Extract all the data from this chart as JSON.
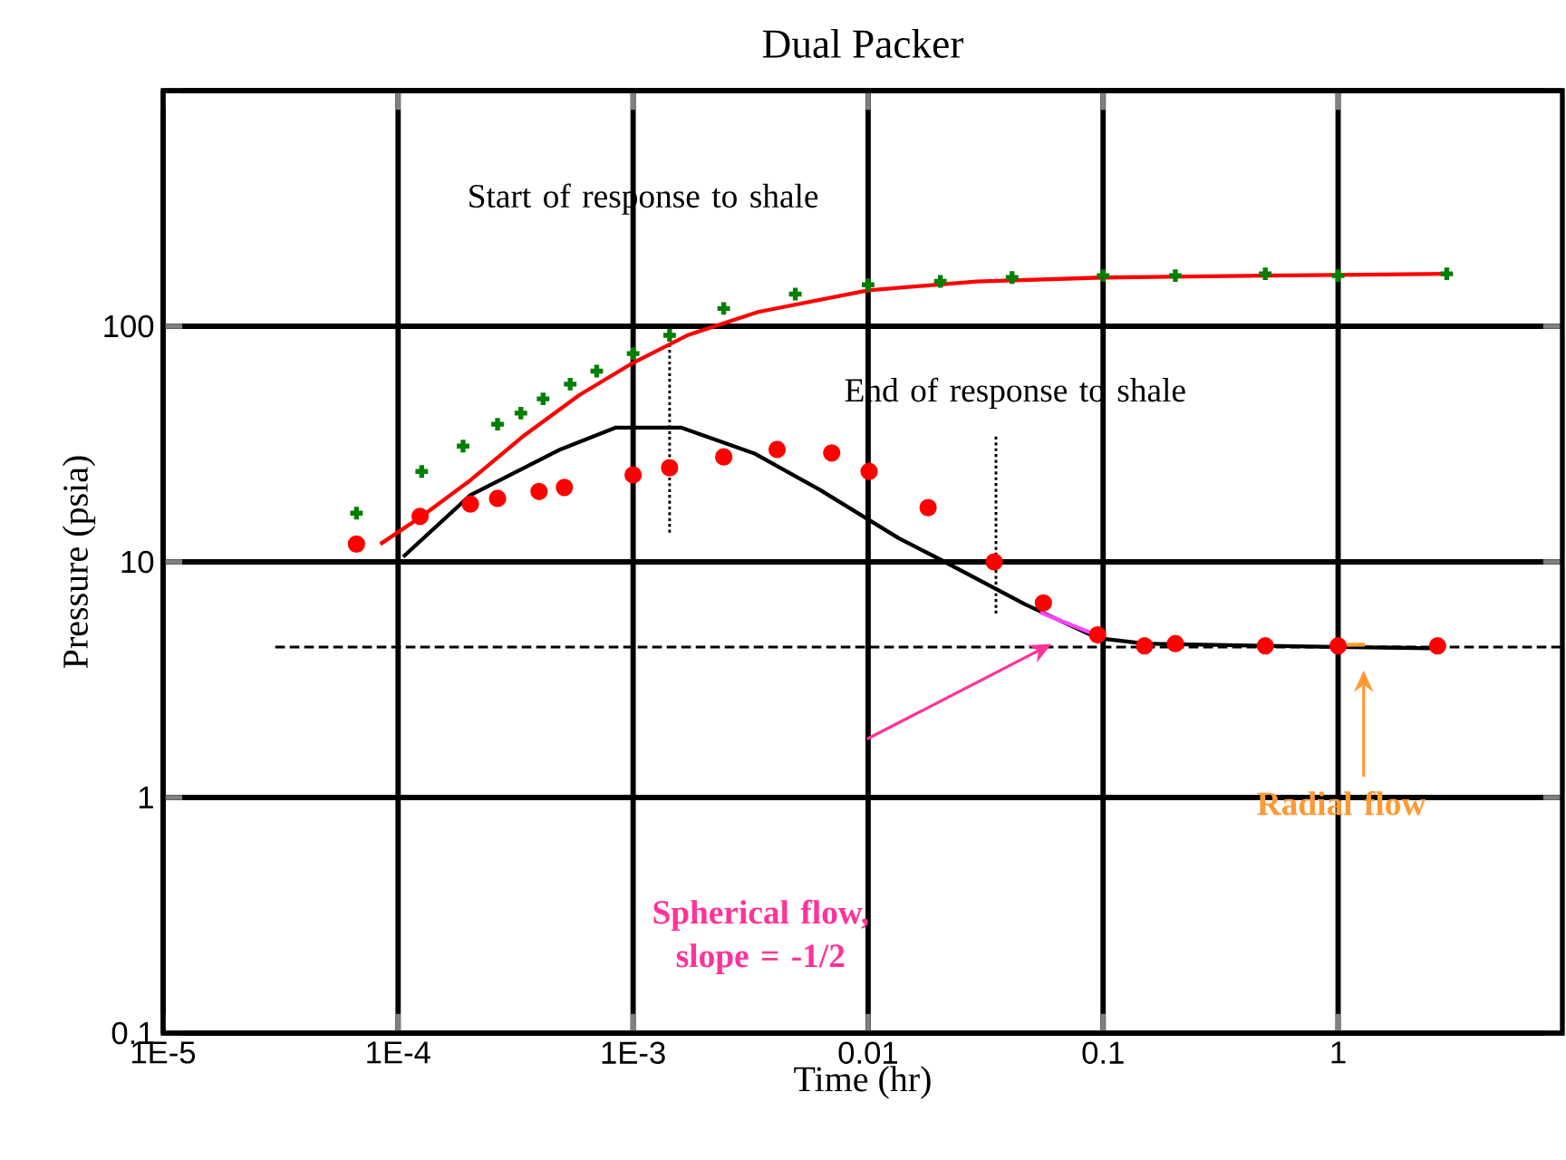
{
  "chart_data": {
    "type": "line",
    "title": "Dual Packer",
    "xlabel": "Time (hr)",
    "ylabel": "Pressure (psia)",
    "log": "xy",
    "grid": true,
    "xlim": [
      1e-05,
      9
    ],
    "ylim": [
      0.1,
      1000
    ],
    "xticks": [
      {
        "value": 1e-05,
        "label": "1E-5"
      },
      {
        "value": 0.0001,
        "label": "1E-4"
      },
      {
        "value": 0.001,
        "label": "1E-3"
      },
      0.01,
      0.1,
      1
    ],
    "yticks": [
      0.1,
      1,
      10,
      100,
      {
        "value": 1000,
        "label": null
      }
    ],
    "annotations": [
      "Start of response to shale",
      "End of response to shale",
      "Spherical flow, slope = -1/2",
      "Radial flow"
    ],
    "series": [
      {
        "color": "#000000",
        "line_style": "dashed",
        "x": [
          3e-05,
          9
        ],
        "values": [
          4.35,
          4.35
        ]
      },
      {
        "color": "#000000",
        "line_style": "dotted",
        "x": [
          0.00143,
          0.00143
        ],
        "values": [
          84,
          13
        ]
      },
      {
        "color": "#000000",
        "line_style": "dotted",
        "x": [
          0.035,
          0.035
        ],
        "values": [
          34,
          5.9
        ]
      },
      {
        "type": "scatter",
        "marker": "cross",
        "color": "#007f00",
        "x": [
          6.65e-05,
          0.000126,
          0.000189,
          0.000265,
          0.000333,
          0.000414,
          0.00054,
          0.0007,
          0.001,
          0.00143,
          0.00243,
          0.0049,
          0.01,
          0.0203,
          0.041,
          0.1,
          0.203,
          0.49,
          1,
          2.9
        ],
        "values": [
          16.1,
          24.2,
          31,
          38.4,
          42.8,
          49.2,
          56.8,
          64.5,
          76.6,
          91.5,
          119,
          137,
          150,
          155,
          161,
          164,
          164,
          167,
          164,
          167
        ]
      },
      {
        "color": "#ff0000",
        "line_style": "solid",
        "x": [
          8.4e-05,
          0.000126,
          0.000203,
          0.000345,
          0.00059,
          0.001,
          0.0017,
          0.0034,
          0.01,
          0.029,
          0.1,
          0.49,
          2.9
        ],
        "values": [
          11.9,
          15.6,
          22.2,
          34.5,
          51,
          70,
          91.5,
          115,
          142,
          155,
          161,
          164,
          167
        ]
      },
      {
        "type": "scatter",
        "marker": "circle",
        "color": "#ff0000",
        "x": [
          6.65e-05,
          0.000124,
          0.000203,
          0.000265,
          0.000398,
          0.00051,
          0.001,
          0.00143,
          0.00243,
          0.0041,
          0.007,
          0.0101,
          0.018,
          0.0344,
          0.0557,
          0.0947,
          0.15,
          0.203,
          0.49,
          1,
          2.65
        ],
        "values": [
          11.9,
          15.6,
          17.6,
          18.6,
          19.9,
          20.7,
          23.4,
          25.1,
          27.9,
          30,
          29,
          24.2,
          17,
          10,
          6.7,
          4.9,
          4.4,
          4.5,
          4.4,
          4.4,
          4.4
        ]
      },
      {
        "color": "#000000",
        "line_style": "solid",
        "x": [
          0.000105,
          0.000203,
          0.00049,
          0.00084,
          0.00161,
          0.00327,
          0.0062,
          0.0135,
          0.0193,
          0.0466,
          0.0947,
          0.15,
          0.49,
          2.55
        ],
        "values": [
          10.5,
          19.2,
          30,
          37.1,
          37.1,
          28.9,
          20.3,
          12.6,
          10.5,
          6.6,
          4.75,
          4.5,
          4.4,
          4.3
        ]
      },
      {
        "color": "#ff44ff",
        "line_style": "solid",
        "x": [
          0.054,
          0.1
        ],
        "values": [
          6.1,
          4.76
        ]
      },
      {
        "color": "#ff9933",
        "line_style": "solid",
        "x": [
          1.09,
          1.3
        ],
        "values": [
          4.45,
          4.45
        ]
      }
    ]
  }
}
